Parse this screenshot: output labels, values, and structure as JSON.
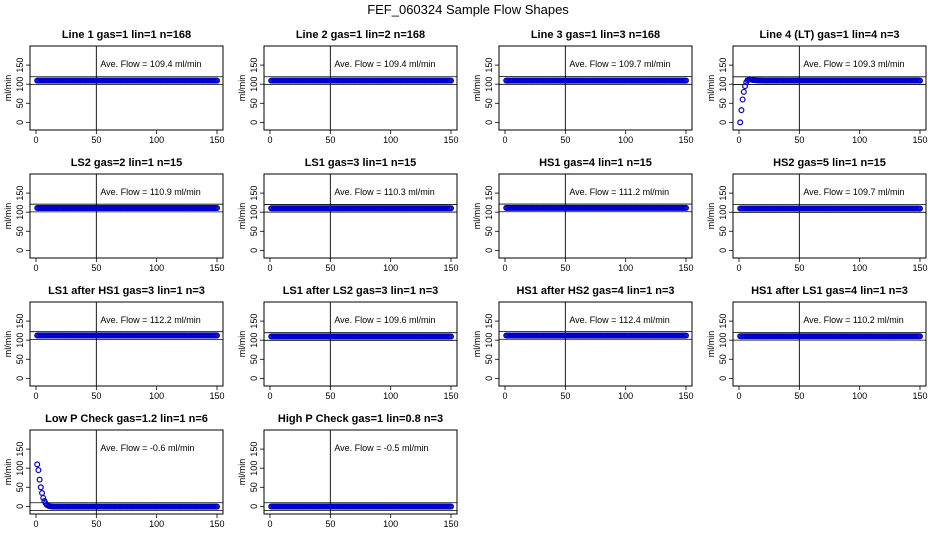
{
  "title": "FEF_060324  Sample Flow Shapes",
  "style": {
    "point_color": "#0000cc",
    "ref_line_color": "#b8860b",
    "axis_color": "#000000"
  },
  "chart_data": [
    {
      "type": "scatter",
      "title": "Line 1 gas=1 lin=1 n=168",
      "ylabel": "ml/min",
      "xlim": [
        0,
        150
      ],
      "ylim": [
        -20,
        200
      ],
      "xticks": [
        0,
        50,
        100,
        150
      ],
      "yticks": [
        0,
        50,
        100,
        150
      ],
      "annotation": "Ave. Flow =  109.4  ml/min",
      "ave_flow": 109.4,
      "vline_x": 50,
      "hlines": [
        99.4,
        119.4
      ],
      "n_points": 150,
      "x": [
        1,
        150
      ],
      "y": [
        109.4,
        109.4
      ]
    },
    {
      "type": "scatter",
      "title": "Line 2 gas=1 lin=2 n=168",
      "ylabel": "ml/min",
      "xlim": [
        0,
        150
      ],
      "ylim": [
        -20,
        200
      ],
      "xticks": [
        0,
        50,
        100,
        150
      ],
      "yticks": [
        0,
        50,
        100,
        150
      ],
      "annotation": "Ave. Flow =  109.4  ml/min",
      "ave_flow": 109.4,
      "vline_x": 50,
      "hlines": [
        99.4,
        119.4
      ],
      "n_points": 150,
      "x": [
        1,
        150
      ],
      "y": [
        109.4,
        109.4
      ]
    },
    {
      "type": "scatter",
      "title": "Line 3 gas=1 lin=3 n=168",
      "ylabel": "ml/min",
      "xlim": [
        0,
        150
      ],
      "ylim": [
        -20,
        200
      ],
      "xticks": [
        0,
        50,
        100,
        150
      ],
      "yticks": [
        0,
        50,
        100,
        150
      ],
      "annotation": "Ave. Flow =  109.7  ml/min",
      "ave_flow": 109.7,
      "vline_x": 50,
      "hlines": [
        99.7,
        119.7
      ],
      "n_points": 150,
      "x": [
        1,
        150
      ],
      "y": [
        109.7,
        109.7
      ]
    },
    {
      "type": "scatter",
      "title": "Line 4 (LT) gas=1 lin=4 n=3",
      "ylabel": "ml/min",
      "xlim": [
        0,
        150
      ],
      "ylim": [
        -20,
        200
      ],
      "xticks": [
        0,
        50,
        100,
        150
      ],
      "yticks": [
        0,
        50,
        100,
        150
      ],
      "annotation": "Ave. Flow =  109.3  ml/min",
      "ave_flow": 109.3,
      "vline_x": 50,
      "hlines": [
        99.3,
        119.3
      ],
      "n_points": 150,
      "x": [
        1,
        2,
        3,
        4,
        5,
        6,
        7,
        8,
        9,
        10,
        12,
        15,
        20,
        150
      ],
      "y": [
        0,
        32,
        60,
        80,
        95,
        105,
        110,
        112,
        113,
        112,
        111,
        110,
        109.3,
        109.3
      ]
    },
    {
      "type": "scatter",
      "title": "LS2 gas=2 lin=1 n=15",
      "ylabel": "ml/min",
      "xlim": [
        0,
        150
      ],
      "ylim": [
        -20,
        200
      ],
      "xticks": [
        0,
        50,
        100,
        150
      ],
      "yticks": [
        0,
        50,
        100,
        150
      ],
      "annotation": "Ave. Flow =  110.9  ml/min",
      "ave_flow": 110.9,
      "vline_x": 50,
      "hlines": [
        100.9,
        120.9
      ],
      "n_points": 150,
      "x": [
        1,
        150
      ],
      "y": [
        110.9,
        110.9
      ]
    },
    {
      "type": "scatter",
      "title": "LS1 gas=3 lin=1 n=15",
      "ylabel": "ml/min",
      "xlim": [
        0,
        150
      ],
      "ylim": [
        -20,
        200
      ],
      "xticks": [
        0,
        50,
        100,
        150
      ],
      "yticks": [
        0,
        50,
        100,
        150
      ],
      "annotation": "Ave. Flow =  110.3  ml/min",
      "ave_flow": 110.3,
      "vline_x": 50,
      "hlines": [
        100.3,
        120.3
      ],
      "n_points": 150,
      "x": [
        1,
        150
      ],
      "y": [
        110.3,
        110.3
      ]
    },
    {
      "type": "scatter",
      "title": "HS1 gas=4 lin=1 n=15",
      "ylabel": "ml/min",
      "xlim": [
        0,
        150
      ],
      "ylim": [
        -20,
        200
      ],
      "xticks": [
        0,
        50,
        100,
        150
      ],
      "yticks": [
        0,
        50,
        100,
        150
      ],
      "annotation": "Ave. Flow =  111.2  ml/min",
      "ave_flow": 111.2,
      "vline_x": 50,
      "hlines": [
        101.2,
        121.2
      ],
      "n_points": 150,
      "x": [
        1,
        150
      ],
      "y": [
        111.2,
        111.2
      ]
    },
    {
      "type": "scatter",
      "title": "HS2 gas=5 lin=1 n=15",
      "ylabel": "ml/min",
      "xlim": [
        0,
        150
      ],
      "ylim": [
        -20,
        200
      ],
      "xticks": [
        0,
        50,
        100,
        150
      ],
      "yticks": [
        0,
        50,
        100,
        150
      ],
      "annotation": "Ave. Flow =  109.7  ml/min",
      "ave_flow": 109.7,
      "vline_x": 50,
      "hlines": [
        99.7,
        119.7
      ],
      "n_points": 150,
      "x": [
        1,
        150
      ],
      "y": [
        109.7,
        109.7
      ]
    },
    {
      "type": "scatter",
      "title": "LS1 after HS1 gas=3 lin=1 n=3",
      "ylabel": "ml/min",
      "xlim": [
        0,
        150
      ],
      "ylim": [
        -20,
        200
      ],
      "xticks": [
        0,
        50,
        100,
        150
      ],
      "yticks": [
        0,
        50,
        100,
        150
      ],
      "annotation": "Ave. Flow =  112.2  ml/min",
      "ave_flow": 112.2,
      "vline_x": 50,
      "hlines": [
        102.2,
        122.2
      ],
      "n_points": 150,
      "x": [
        1,
        150
      ],
      "y": [
        112.2,
        112.2
      ]
    },
    {
      "type": "scatter",
      "title": "LS1 after LS2 gas=3 lin=1 n=3",
      "ylabel": "ml/min",
      "xlim": [
        0,
        150
      ],
      "ylim": [
        -20,
        200
      ],
      "xticks": [
        0,
        50,
        100,
        150
      ],
      "yticks": [
        0,
        50,
        100,
        150
      ],
      "annotation": "Ave. Flow =  109.6  ml/min",
      "ave_flow": 109.6,
      "vline_x": 50,
      "hlines": [
        99.6,
        119.6
      ],
      "n_points": 150,
      "x": [
        1,
        150
      ],
      "y": [
        109.6,
        109.6
      ]
    },
    {
      "type": "scatter",
      "title": "HS1 after HS2 gas=4 lin=1 n=3",
      "ylabel": "ml/min",
      "xlim": [
        0,
        150
      ],
      "ylim": [
        -20,
        200
      ],
      "xticks": [
        0,
        50,
        100,
        150
      ],
      "yticks": [
        0,
        50,
        100,
        150
      ],
      "annotation": "Ave. Flow =  112.4  ml/min",
      "ave_flow": 112.4,
      "vline_x": 50,
      "hlines": [
        102.4,
        122.4
      ],
      "n_points": 150,
      "x": [
        1,
        150
      ],
      "y": [
        112.4,
        112.4
      ]
    },
    {
      "type": "scatter",
      "title": "HS1 after LS1 gas=4 lin=1 n=3",
      "ylabel": "ml/min",
      "xlim": [
        0,
        150
      ],
      "ylim": [
        -20,
        200
      ],
      "xticks": [
        0,
        50,
        100,
        150
      ],
      "yticks": [
        0,
        50,
        100,
        150
      ],
      "annotation": "Ave. Flow =  110.2  ml/min",
      "ave_flow": 110.2,
      "vline_x": 50,
      "hlines": [
        100.2,
        120.2
      ],
      "n_points": 150,
      "x": [
        1,
        150
      ],
      "y": [
        110.2,
        110.2
      ]
    },
    {
      "type": "scatter",
      "title": "Low P Check gas=1.2 lin=1 n=6",
      "ylabel": "ml/min",
      "xlim": [
        0,
        150
      ],
      "ylim": [
        -20,
        200
      ],
      "xticks": [
        0,
        50,
        100,
        150
      ],
      "yticks": [
        0,
        50,
        100,
        150
      ],
      "annotation": "Ave. Flow =  -0.6  ml/min",
      "ave_flow": -0.6,
      "vline_x": 50,
      "hlines": [
        -10.6,
        9.4
      ],
      "n_points": 150,
      "x": [
        1,
        2,
        3,
        4,
        5,
        6,
        7,
        8,
        9,
        10,
        12,
        15,
        150
      ],
      "y": [
        110,
        95,
        70,
        50,
        35,
        22,
        14,
        8,
        4,
        2,
        0,
        -0.6,
        -0.6
      ]
    },
    {
      "type": "scatter",
      "title": "High P Check gas=1 lin=0.8 n=3",
      "ylabel": "ml/min",
      "xlim": [
        0,
        150
      ],
      "ylim": [
        -20,
        200
      ],
      "xticks": [
        0,
        50,
        100,
        150
      ],
      "yticks": [
        0,
        50,
        100,
        150
      ],
      "annotation": "Ave. Flow =  -0.5  ml/min",
      "ave_flow": -0.5,
      "vline_x": 50,
      "hlines": [
        -10.5,
        9.5
      ],
      "n_points": 150,
      "x": [
        1,
        150
      ],
      "y": [
        -0.5,
        -0.5
      ]
    }
  ]
}
